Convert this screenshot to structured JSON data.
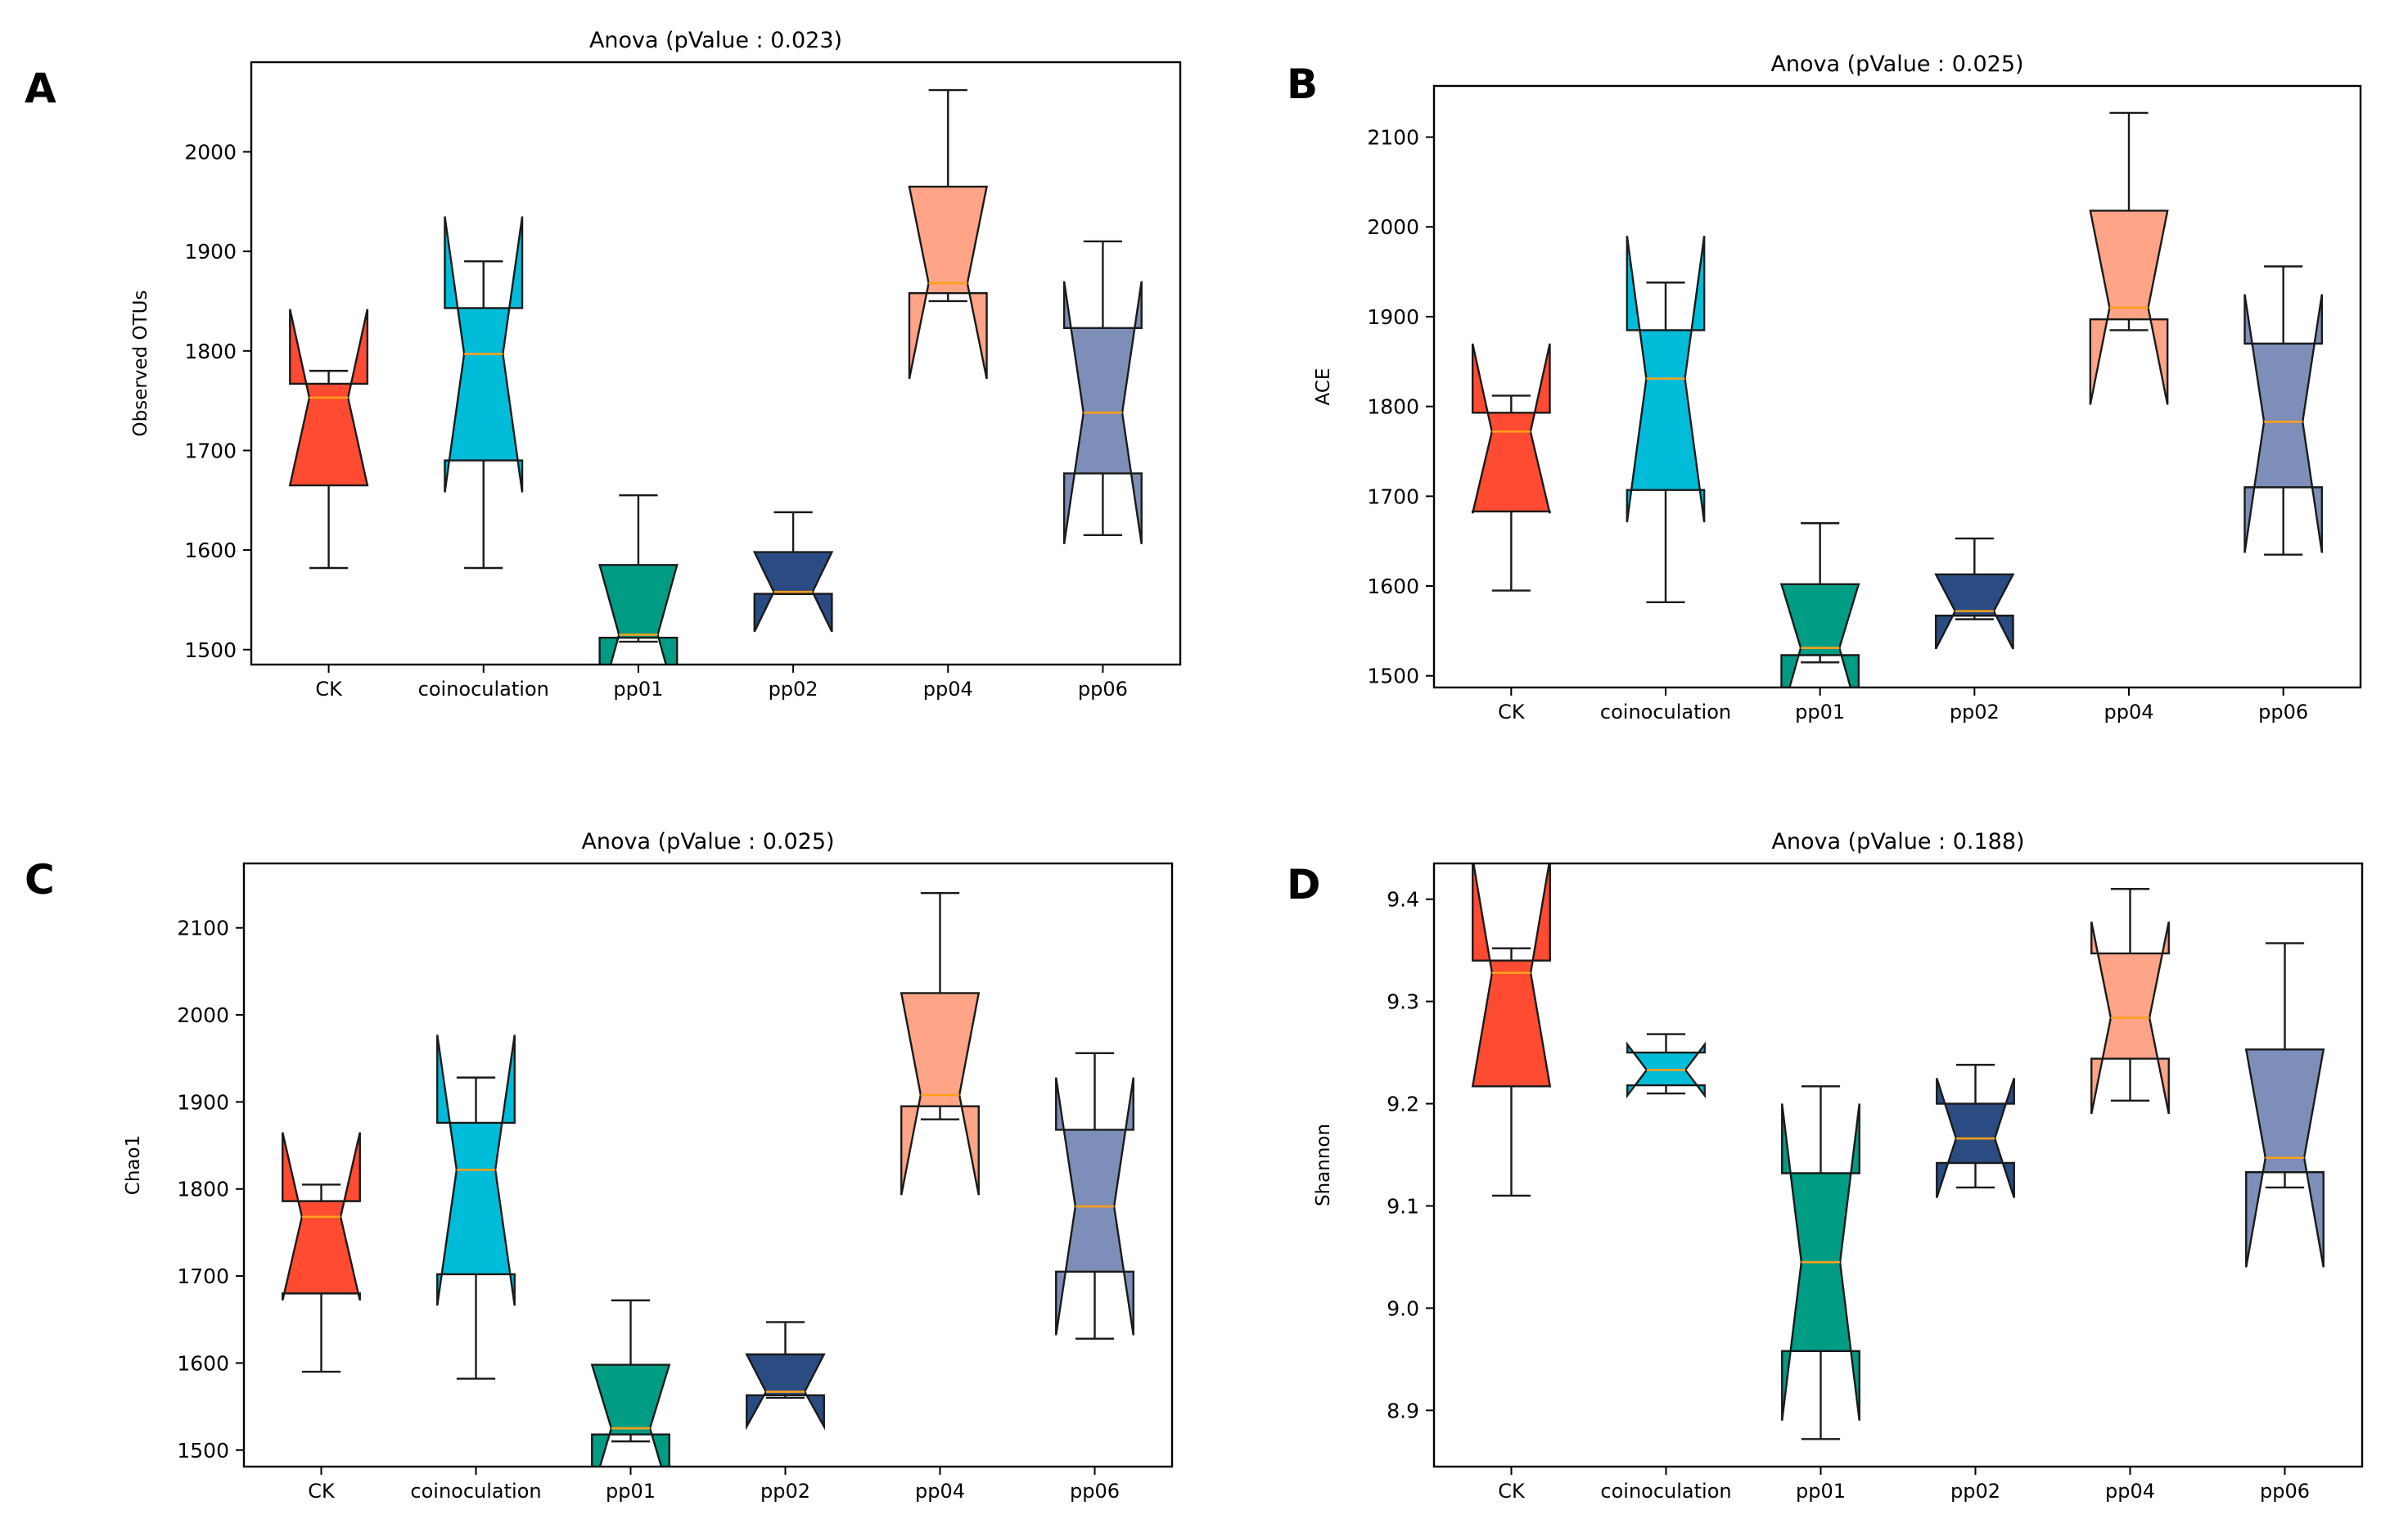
{
  "chart_data": [
    {
      "panel": "A",
      "type": "box",
      "title": "Anova (pValue : 0.023)",
      "xlabel": "",
      "ylabel": "Observed OTUs",
      "ylim": [
        1485,
        2090
      ],
      "yticks": [
        1500,
        1600,
        1700,
        1800,
        1900,
        2000
      ],
      "ytick_labels": [
        "1500",
        "1600",
        "1700",
        "1800",
        "1900",
        "2000"
      ],
      "categories": [
        "CK",
        "coinoculation",
        "pp01",
        "pp02",
        "pp04",
        "pp06"
      ],
      "colors": [
        "#ff4b31",
        "#00bcd9",
        "#009c84",
        "#2b4c82",
        "#ffa486",
        "#7d8fb8"
      ],
      "boxes": [
        {
          "whislo": 1582,
          "q1": 1665,
          "notch_lo": 1665,
          "median": 1753,
          "notch_hi": 1767,
          "q3": 1767,
          "whishi": 1780,
          "notch_extent_lo": 1665,
          "notch_extent_hi": 1842
        },
        {
          "whislo": 1582,
          "q1": 1690,
          "notch_lo": 1690,
          "median": 1797,
          "notch_hi": 1843,
          "q3": 1843,
          "whishi": 1890,
          "notch_extent_lo": 1658,
          "notch_extent_hi": 1935
        },
        {
          "whislo": 1508,
          "q1": 1512,
          "notch_lo": 1512,
          "median": 1515,
          "notch_hi": 1585,
          "q3": 1585,
          "whishi": 1655,
          "notch_extent_lo": 1445,
          "notch_extent_hi": 1585
        },
        {
          "whislo": 1556,
          "q1": 1556,
          "notch_lo": 1556,
          "median": 1558,
          "notch_hi": 1598,
          "q3": 1598,
          "whishi": 1638,
          "notch_extent_lo": 1518,
          "notch_extent_hi": 1598
        },
        {
          "whislo": 1850,
          "q1": 1858,
          "notch_lo": 1858,
          "median": 1868,
          "notch_hi": 1965,
          "q3": 1965,
          "whishi": 2062,
          "notch_extent_lo": 1772,
          "notch_extent_hi": 1965
        },
        {
          "whislo": 1615,
          "q1": 1677,
          "notch_lo": 1677,
          "median": 1738,
          "notch_hi": 1823,
          "q3": 1823,
          "whishi": 1910,
          "notch_extent_lo": 1606,
          "notch_extent_hi": 1870
        }
      ]
    },
    {
      "panel": "B",
      "type": "box",
      "title": "Anova (pValue : 0.025)",
      "xlabel": "",
      "ylabel": "ACE",
      "ylim": [
        1487,
        2157
      ],
      "yticks": [
        1500,
        1600,
        1700,
        1800,
        1900,
        2000,
        2100
      ],
      "ytick_labels": [
        "1500",
        "1600",
        "1700",
        "1800",
        "1900",
        "2000",
        "2100"
      ],
      "categories": [
        "CK",
        "coinoculation",
        "pp01",
        "pp02",
        "pp04",
        "pp06"
      ],
      "colors": [
        "#ff4b31",
        "#00bcd9",
        "#009c84",
        "#2b4c82",
        "#ffa486",
        "#7d8fb8"
      ],
      "boxes": [
        {
          "whislo": 1595,
          "q1": 1683,
          "notch_lo": 1683,
          "median": 1772,
          "notch_hi": 1793,
          "q3": 1793,
          "whishi": 1812,
          "notch_extent_lo": 1681,
          "notch_extent_hi": 1870
        },
        {
          "whislo": 1582,
          "q1": 1707,
          "notch_lo": 1707,
          "median": 1831,
          "notch_hi": 1885,
          "q3": 1885,
          "whishi": 1938,
          "notch_extent_lo": 1671,
          "notch_extent_hi": 1990
        },
        {
          "whislo": 1515,
          "q1": 1523,
          "notch_lo": 1523,
          "median": 1531,
          "notch_hi": 1602,
          "q3": 1602,
          "whishi": 1670,
          "notch_extent_lo": 1455,
          "notch_extent_hi": 1602
        },
        {
          "whislo": 1563,
          "q1": 1567,
          "notch_lo": 1567,
          "median": 1572,
          "notch_hi": 1613,
          "q3": 1613,
          "whishi": 1653,
          "notch_extent_lo": 1530,
          "notch_extent_hi": 1613
        },
        {
          "whislo": 1885,
          "q1": 1897,
          "notch_lo": 1897,
          "median": 1910,
          "notch_hi": 2018,
          "q3": 2018,
          "whishi": 2127,
          "notch_extent_lo": 1802,
          "notch_extent_hi": 2018
        },
        {
          "whislo": 1635,
          "q1": 1710,
          "notch_lo": 1710,
          "median": 1783,
          "notch_hi": 1870,
          "q3": 1870,
          "whishi": 1956,
          "notch_extent_lo": 1637,
          "notch_extent_hi": 1925
        }
      ]
    },
    {
      "panel": "C",
      "type": "box",
      "title": "Anova (pValue : 0.025)",
      "xlabel": "",
      "ylabel": "Chao1",
      "ylim": [
        1481,
        2174
      ],
      "yticks": [
        1500,
        1600,
        1700,
        1800,
        1900,
        2000,
        2100
      ],
      "ytick_labels": [
        "1500",
        "1600",
        "1700",
        "1800",
        "1900",
        "2000",
        "2100"
      ],
      "categories": [
        "CK",
        "coinoculation",
        "pp01",
        "pp02",
        "pp04",
        "pp06"
      ],
      "colors": [
        "#ff4b31",
        "#00bcd9",
        "#009c84",
        "#2b4c82",
        "#ffa486",
        "#7d8fb8"
      ],
      "boxes": [
        {
          "whislo": 1590,
          "q1": 1680,
          "notch_lo": 1680,
          "median": 1768,
          "notch_hi": 1786,
          "q3": 1786,
          "whishi": 1805,
          "notch_extent_lo": 1672,
          "notch_extent_hi": 1865
        },
        {
          "whislo": 1582,
          "q1": 1702,
          "notch_lo": 1702,
          "median": 1822,
          "notch_hi": 1876,
          "q3": 1876,
          "whishi": 1928,
          "notch_extent_lo": 1666,
          "notch_extent_hi": 1977
        },
        {
          "whislo": 1510,
          "q1": 1518,
          "notch_lo": 1518,
          "median": 1525,
          "notch_hi": 1598,
          "q3": 1598,
          "whishi": 1672,
          "notch_extent_lo": 1450,
          "notch_extent_hi": 1598
        },
        {
          "whislo": 1560,
          "q1": 1563,
          "notch_lo": 1563,
          "median": 1567,
          "notch_hi": 1610,
          "q3": 1610,
          "whishi": 1647,
          "notch_extent_lo": 1527,
          "notch_extent_hi": 1610
        },
        {
          "whislo": 1880,
          "q1": 1895,
          "notch_lo": 1895,
          "median": 1908,
          "notch_hi": 2025,
          "q3": 2025,
          "whishi": 2140,
          "notch_extent_lo": 1793,
          "notch_extent_hi": 2025
        },
        {
          "whislo": 1628,
          "q1": 1705,
          "notch_lo": 1705,
          "median": 1780,
          "notch_hi": 1868,
          "q3": 1868,
          "whishi": 1956,
          "notch_extent_lo": 1632,
          "notch_extent_hi": 1928
        }
      ]
    },
    {
      "panel": "D",
      "type": "box",
      "title": "Anova (pValue : 0.188)",
      "xlabel": "",
      "ylabel": "Shannon",
      "ylim": [
        8.845,
        9.435
      ],
      "yticks": [
        8.9,
        9.0,
        9.1,
        9.2,
        9.3,
        9.4
      ],
      "ytick_labels": [
        "8.9",
        "9.0",
        "9.1",
        "9.2",
        "9.3",
        "9.4"
      ],
      "categories": [
        "CK",
        "coinoculation",
        "pp01",
        "pp02",
        "pp04",
        "pp06"
      ],
      "colors": [
        "#ff4b31",
        "#00bcd9",
        "#009c84",
        "#2b4c82",
        "#ffa486",
        "#7d8fb8"
      ],
      "boxes": [
        {
          "whislo": 9.11,
          "q1": 9.217,
          "notch_lo": 9.217,
          "median": 9.328,
          "notch_hi": 9.34,
          "q3": 9.34,
          "whishi": 9.352,
          "notch_extent_lo": 9.217,
          "notch_extent_hi": 9.44
        },
        {
          "whislo": 9.21,
          "q1": 9.218,
          "notch_lo": 9.218,
          "median": 9.233,
          "notch_hi": 9.25,
          "q3": 9.25,
          "whishi": 9.268,
          "notch_extent_lo": 9.208,
          "notch_extent_hi": 9.258
        },
        {
          "whislo": 8.872,
          "q1": 8.958,
          "notch_lo": 8.958,
          "median": 9.045,
          "notch_hi": 9.132,
          "q3": 9.132,
          "whishi": 9.217,
          "notch_extent_lo": 8.89,
          "notch_extent_hi": 9.2
        },
        {
          "whislo": 9.118,
          "q1": 9.142,
          "notch_lo": 9.142,
          "median": 9.166,
          "notch_hi": 9.2,
          "q3": 9.2,
          "whishi": 9.238,
          "notch_extent_lo": 9.108,
          "notch_extent_hi": 9.225
        },
        {
          "whislo": 9.203,
          "q1": 9.244,
          "notch_lo": 9.244,
          "median": 9.284,
          "notch_hi": 9.347,
          "q3": 9.347,
          "whishi": 9.41,
          "notch_extent_lo": 9.19,
          "notch_extent_hi": 9.378
        },
        {
          "whislo": 9.118,
          "q1": 9.133,
          "notch_lo": 9.133,
          "median": 9.147,
          "notch_hi": 9.253,
          "q3": 9.253,
          "whishi": 9.357,
          "notch_extent_lo": 9.04,
          "notch_extent_hi": 9.253
        }
      ]
    }
  ],
  "style": {
    "median_color": "#ff9f1a",
    "edge_color": "#1a1a1a",
    "background": "#ffffff"
  }
}
